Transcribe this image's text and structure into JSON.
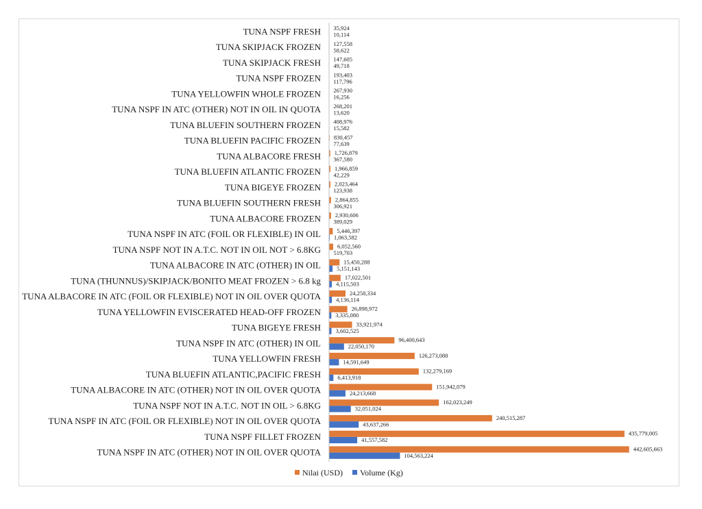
{
  "chart_data": {
    "type": "bar",
    "orientation": "horizontal",
    "title": "",
    "xlabel": "",
    "ylabel": "",
    "xlim": [
      0,
      450000000
    ],
    "grid": false,
    "legend_position": "bottom",
    "categories": [
      "TUNA NSPF FRESH",
      "TUNA SKIPJACK FROZEN",
      "TUNA SKIPJACK FRESH",
      "TUNA NSPF FROZEN",
      "TUNA YELLOWFIN WHOLE FROZEN",
      "TUNA NSPF IN ATC (OTHER) NOT IN OIL IN QUOTA",
      "TUNA BLUEFIN SOUTHERN FROZEN",
      "TUNA BLUEFIN PACIFIC FROZEN",
      "TUNA ALBACORE FRESH",
      "TUNA BLUEFIN ATLANTIC FROZEN",
      "TUNA BIGEYE FROZEN",
      "TUNA BLUEFIN SOUTHERN FRESH",
      "TUNA ALBACORE FROZEN",
      "TUNA NSPF IN ATC (FOIL OR FLEXIBLE) IN OIL",
      "TUNA NSPF NOT IN A.T.C. NOT IN OIL NOT > 6.8KG",
      "TUNA ALBACORE IN ATC (OTHER) IN OIL",
      "TUNA (THUNNUS)/SKIPJACK/BONITO MEAT FROZEN > 6.8 kg",
      "TUNA ALBACORE IN ATC (FOIL OR FLEXIBLE) NOT IN OIL OVER QUOTA",
      "TUNA YELLOWFIN EVISCERATED HEAD-OFF FROZEN",
      "TUNA BIGEYE FRESH",
      "TUNA NSPF IN ATC (OTHER) IN OIL",
      "TUNA YELLOWFIN FRESH",
      "TUNA BLUEFIN ATLANTIC,PACIFIC FRESH",
      "TUNA ALBACORE IN ATC (OTHER) NOT IN OIL OVER QUOTA",
      "TUNA NSPF NOT IN A.T.C. NOT IN OIL > 6.8KG",
      "TUNA NSPF IN ATC (FOIL OR FLEXIBLE) NOT IN OIL OVER QUOTA",
      "TUNA NSPF FILLET FROZEN",
      "TUNA NSPF IN ATC (OTHER) NOT IN OIL OVER QUOTA"
    ],
    "series": [
      {
        "name": "Nilai (USD)",
        "color": "#e07b39",
        "values": [
          35924,
          127558,
          147605,
          193403,
          267930,
          268201,
          408976,
          830457,
          1726879,
          1966859,
          2023464,
          2864855,
          2930606,
          5446397,
          6052560,
          15450288,
          17022501,
          24258334,
          26898972,
          33921974,
          96400643,
          126273088,
          132279169,
          151942079,
          162023249,
          240515287,
          435779005,
          442605663
        ],
        "labels": [
          "35,924",
          "127,558",
          "147,605",
          "193,403",
          "267,930",
          "268,201",
          "408,976",
          "830,457",
          "1,726,879",
          "1,966,859",
          "2,023,464",
          "2,864,855",
          "2,930,606",
          "5,446,397",
          "6,052,560",
          "15,450,288",
          "17,022,501",
          "24,258,334",
          "26,898,972",
          "33,921,974",
          "96,400,643",
          "126,273,088",
          "132,279,169",
          "151,942,079",
          "162,023,249",
          "240,515,287",
          "435,779,005",
          "442,605,663"
        ]
      },
      {
        "name": "Volume (Kg)",
        "color": "#4472c4",
        "values": [
          10114,
          58622,
          49718,
          117796,
          16256,
          13620,
          15582,
          77639,
          367580,
          42229,
          123938,
          306921,
          389029,
          1063582,
          519703,
          5151143,
          4115503,
          4136114,
          3335080,
          3602525,
          22050170,
          14591649,
          6413918,
          24213668,
          32051024,
          43637266,
          41557582,
          104563224
        ],
        "labels": [
          "10,114",
          "58,622",
          "49,718",
          "117,796",
          "16,256",
          "13,620",
          "15,582",
          "77,639",
          "367,580",
          "42,229",
          "123,938",
          "306,921",
          "389,029",
          "1,063,582",
          "519,703",
          "5,151,143",
          "4,115,503",
          "4,136,114",
          "3,335,080",
          "3,602,525",
          "22,050,170",
          "14,591,649",
          "6,413,918",
          "24,213,668",
          "32,051,024",
          "43,637,266",
          "41,557,582",
          "104,563,224"
        ]
      }
    ]
  }
}
